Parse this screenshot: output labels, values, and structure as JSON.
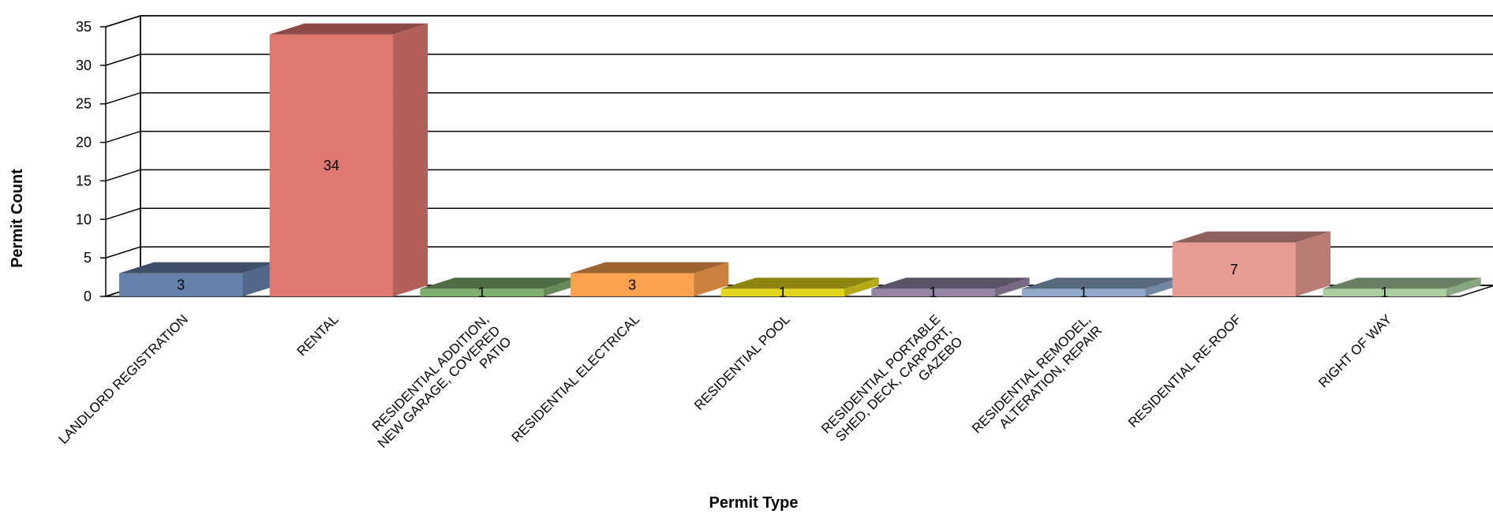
{
  "chart_data": {
    "type": "bar",
    "title": "",
    "xlabel": "Permit Type",
    "ylabel": "Permit Count",
    "ylim": [
      0,
      35
    ],
    "yticks": [
      0,
      5,
      10,
      15,
      20,
      25,
      30,
      35
    ],
    "ytick_labels": [
      "0",
      "5",
      "10",
      "15",
      "20",
      "25",
      "30",
      "35"
    ],
    "grid": true,
    "three_d": true,
    "categories": [
      "LANDLORD REGISTRATION",
      "RENTAL",
      "RESIDENTIAL ADDITION, NEW GARAGE, COVERED PATIO",
      "RESIDENTIAL ELECTRICAL",
      "RESIDENTIAL POOL",
      "RESIDENTIAL PORTABLE SHED, DECK, CARPORT, GAZEBO",
      "RESIDENTIAL REMODEL, ALTERATION, REPAIR",
      "RESIDENTIAL RE-ROOF",
      "RIGHT OF WAY"
    ],
    "category_label_lines": [
      [
        "LANDLORD REGISTRATION"
      ],
      [
        "RENTAL"
      ],
      [
        "RESIDENTIAL ADDITION,",
        "NEW GARAGE, COVERED",
        "PATIO"
      ],
      [
        "RESIDENTIAL ELECTRICAL"
      ],
      [
        "RESIDENTIAL POOL"
      ],
      [
        "RESIDENTIAL PORTABLE",
        "SHED, DECK, CARPORT,",
        "GAZEBO"
      ],
      [
        "RESIDENTIAL REMODEL,",
        "ALTERATION, REPAIR"
      ],
      [
        "RESIDENTIAL RE-ROOF"
      ],
      [
        "RIGHT OF WAY"
      ]
    ],
    "values": [
      3,
      34,
      1,
      3,
      1,
      1,
      1,
      7,
      1
    ],
    "data_labels": [
      "3",
      "34",
      "1",
      "3",
      "1",
      "1",
      "1",
      "7",
      "1"
    ],
    "colors": [
      "#6580AA",
      "#E07872",
      "#7FAE6E",
      "#FDA24E",
      "#E3D51B",
      "#9585A3",
      "#90A9CC",
      "#E79B92",
      "#A9CFA1"
    ]
  }
}
